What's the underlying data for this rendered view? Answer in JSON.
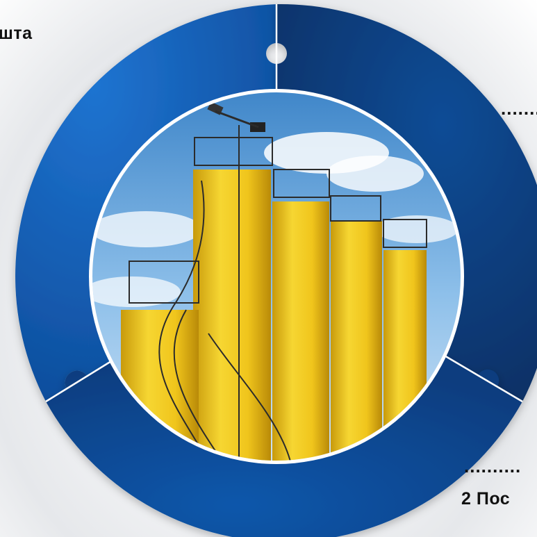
{
  "labels": {
    "top_left": "шта",
    "top_right_dots": ".......",
    "bottom_right_dots": "..........",
    "bottom_right": "2 Пос"
  },
  "colors": {
    "segment_dark": "#0b3d7c",
    "segment_mid": "#0d4f9a",
    "segment_light": "#1967c4",
    "divider": "#ffffff",
    "sky": "#5a9fd8",
    "silo": "#f2c81e"
  },
  "ring": {
    "segments": [
      {
        "name": "top-left-segment"
      },
      {
        "name": "right-segment"
      },
      {
        "name": "bottom-segment"
      }
    ]
  },
  "center_image": {
    "description_icon": "industrial-silos-image"
  }
}
